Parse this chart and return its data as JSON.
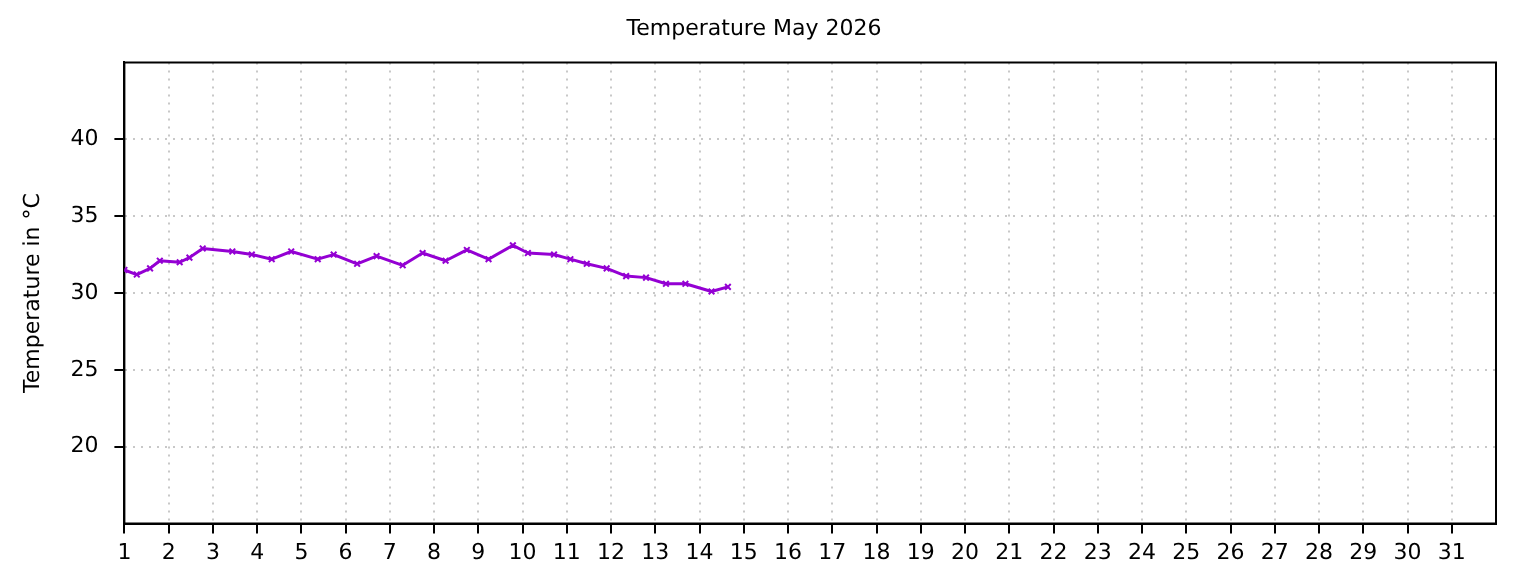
{
  "chart_data": {
    "type": "line",
    "title": "Temperature May 2026",
    "ylabel": "Temperature in °C",
    "x": [
      1.0,
      1.28,
      1.58,
      1.8,
      2.25,
      2.47,
      2.77,
      3.44,
      3.88,
      4.33,
      4.77,
      5.37,
      5.73,
      6.26,
      6.7,
      7.29,
      7.74,
      8.26,
      8.74,
      9.23,
      9.78,
      10.12,
      10.71,
      11.08,
      11.45,
      11.9,
      12.34,
      12.79,
      13.24,
      13.68,
      14.27,
      14.64
    ],
    "series": [
      {
        "color": "#9400d3",
        "values": [
          31.5,
          31.2,
          31.6,
          32.1,
          32.0,
          32.3,
          32.9,
          32.7,
          32.5,
          32.2,
          32.7,
          32.2,
          32.5,
          31.9,
          32.4,
          31.8,
          32.6,
          32.1,
          32.8,
          32.2,
          33.1,
          32.6,
          32.5,
          32.2,
          31.9,
          31.6,
          31.1,
          31.0,
          30.6,
          30.6,
          30.1,
          30.4
        ]
      }
    ],
    "xlim": [
      1,
      32
    ],
    "xticks": [
      1,
      2,
      3,
      4,
      5,
      6,
      7,
      8,
      9,
      10,
      11,
      12,
      13,
      14,
      15,
      16,
      17,
      18,
      19,
      20,
      21,
      22,
      23,
      24,
      25,
      26,
      27,
      28,
      29,
      30,
      31
    ],
    "ylim": [
      15,
      45
    ],
    "yticks": [
      20,
      25,
      30,
      35,
      40
    ],
    "grid": true,
    "legend": false,
    "marker": "cross",
    "line_style": "solid"
  }
}
